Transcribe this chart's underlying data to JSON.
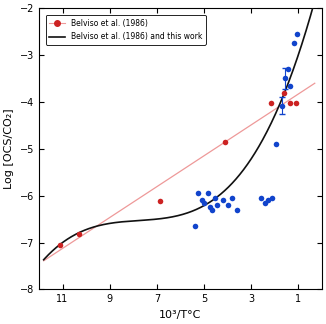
{
  "xlabel": "10³/T°C",
  "ylabel": "Log [OCS/CO₂]",
  "xlim": [
    12,
    0
  ],
  "ylim": [
    -8,
    -2
  ],
  "xticks": [
    11,
    9,
    7,
    5,
    3,
    1
  ],
  "yticks": [
    -8,
    -7,
    -6,
    -5,
    -4,
    -3,
    -2
  ],
  "red_dots": [
    [
      11.1,
      -7.05
    ],
    [
      10.3,
      -6.82
    ],
    [
      6.85,
      -6.12
    ],
    [
      4.1,
      -4.85
    ],
    [
      2.15,
      -4.02
    ],
    [
      1.6,
      -3.82
    ],
    [
      1.35,
      -4.02
    ],
    [
      1.1,
      -4.02
    ]
  ],
  "blue_dots": [
    [
      5.4,
      -6.65
    ],
    [
      5.25,
      -5.95
    ],
    [
      5.1,
      -6.1
    ],
    [
      5.0,
      -6.15
    ],
    [
      4.85,
      -5.95
    ],
    [
      4.75,
      -6.25
    ],
    [
      4.65,
      -6.3
    ],
    [
      4.55,
      -6.05
    ],
    [
      4.45,
      -6.2
    ],
    [
      4.2,
      -6.1
    ],
    [
      4.0,
      -6.2
    ],
    [
      3.8,
      -6.05
    ],
    [
      3.6,
      -6.3
    ],
    [
      2.6,
      -6.05
    ],
    [
      2.4,
      -6.15
    ],
    [
      2.3,
      -6.1
    ],
    [
      2.1,
      -6.05
    ],
    [
      1.95,
      -4.9
    ],
    [
      1.7,
      -4.08
    ],
    [
      1.55,
      -3.5
    ],
    [
      1.45,
      -3.3
    ],
    [
      1.35,
      -3.65
    ],
    [
      1.2,
      -2.75
    ],
    [
      1.05,
      -2.55
    ]
  ],
  "blue_errorbars": [
    [
      1.55,
      -3.5,
      0.22
    ],
    [
      1.7,
      -4.08,
      0.18
    ]
  ],
  "red_line_slope": 0.315,
  "red_line_intercept": -10.55,
  "black_curve_a": -2.5,
  "black_curve_b": -0.72,
  "black_curve_c": 0.028,
  "black_curve_d": 0.0,
  "legend_red_label": "Belviso et al. (1986)",
  "legend_black_label": "Belviso et al. (1986) and this work",
  "red_color": "#cc2222",
  "blue_color": "#1144cc",
  "red_line_color": "#ee9999",
  "black_curve_color": "#111111",
  "dot_size": 16,
  "background_color": "#ffffff"
}
